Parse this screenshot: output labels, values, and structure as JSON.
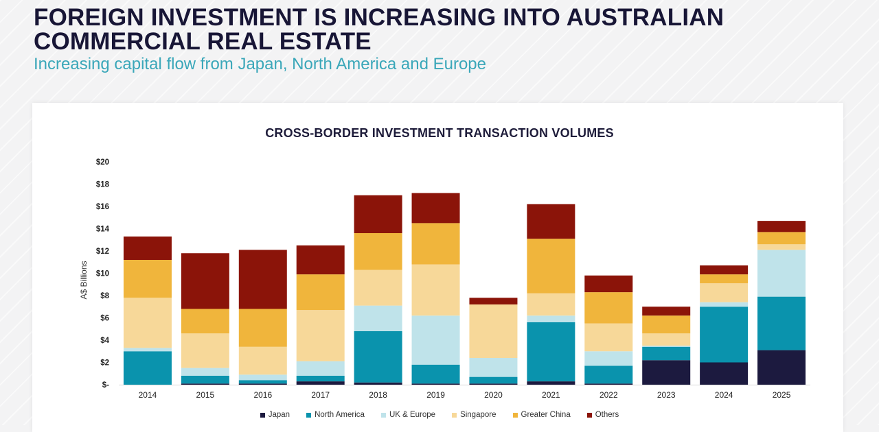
{
  "header": {
    "title": "FOREIGN INVESTMENT IS INCREASING INTO AUSTRALIAN COMMERCIAL REAL ESTATE",
    "subtitle": "Increasing capital flow from Japan, North America and Europe"
  },
  "chart_data": {
    "type": "bar",
    "stacked": true,
    "title": "CROSS-BORDER INVESTMENT TRANSACTION VOLUMES",
    "ylabel": "A$ Billions",
    "xlabel": "",
    "ylim": [
      0,
      20
    ],
    "yticks": [
      0,
      2,
      4,
      6,
      8,
      10,
      12,
      14,
      16,
      18,
      20
    ],
    "ytick_labels": [
      "$-",
      "$2",
      "$4",
      "$6",
      "$8",
      "$10",
      "$12",
      "$14",
      "$16",
      "$18",
      "$20"
    ],
    "categories": [
      "2014",
      "2015",
      "2016",
      "2017",
      "2018",
      "2019",
      "2020",
      "2021",
      "2022",
      "2023",
      "2024",
      "2025"
    ],
    "series": [
      {
        "name": "Japan",
        "color": "#1c1a3f",
        "values": [
          0.0,
          0.1,
          0.1,
          0.3,
          0.2,
          0.1,
          0.1,
          0.3,
          0.1,
          2.2,
          2.0,
          3.1
        ]
      },
      {
        "name": "North America",
        "color": "#0a93ad",
        "values": [
          3.0,
          0.7,
          0.3,
          0.5,
          4.6,
          1.7,
          0.6,
          5.3,
          1.6,
          1.2,
          5.0,
          4.8
        ]
      },
      {
        "name": "UK & Europe",
        "color": "#bfe3ea",
        "values": [
          0.3,
          0.7,
          0.5,
          1.3,
          2.3,
          4.4,
          1.7,
          0.6,
          1.3,
          0.1,
          0.4,
          4.2
        ]
      },
      {
        "name": "Singapore",
        "color": "#f7d899",
        "values": [
          4.5,
          3.1,
          2.5,
          4.6,
          3.2,
          4.6,
          4.8,
          2.0,
          2.5,
          1.1,
          1.7,
          0.5
        ]
      },
      {
        "name": "Greater China",
        "color": "#f0b53c",
        "values": [
          3.4,
          2.2,
          3.4,
          3.2,
          3.3,
          3.7,
          0.0,
          4.9,
          2.8,
          1.6,
          0.8,
          1.1
        ]
      },
      {
        "name": "Others",
        "color": "#8b1409",
        "values": [
          2.1,
          5.0,
          5.3,
          2.6,
          3.4,
          2.7,
          0.6,
          3.1,
          1.5,
          0.8,
          0.8,
          1.0
        ]
      }
    ],
    "grid": false,
    "legend_position": "bottom"
  }
}
